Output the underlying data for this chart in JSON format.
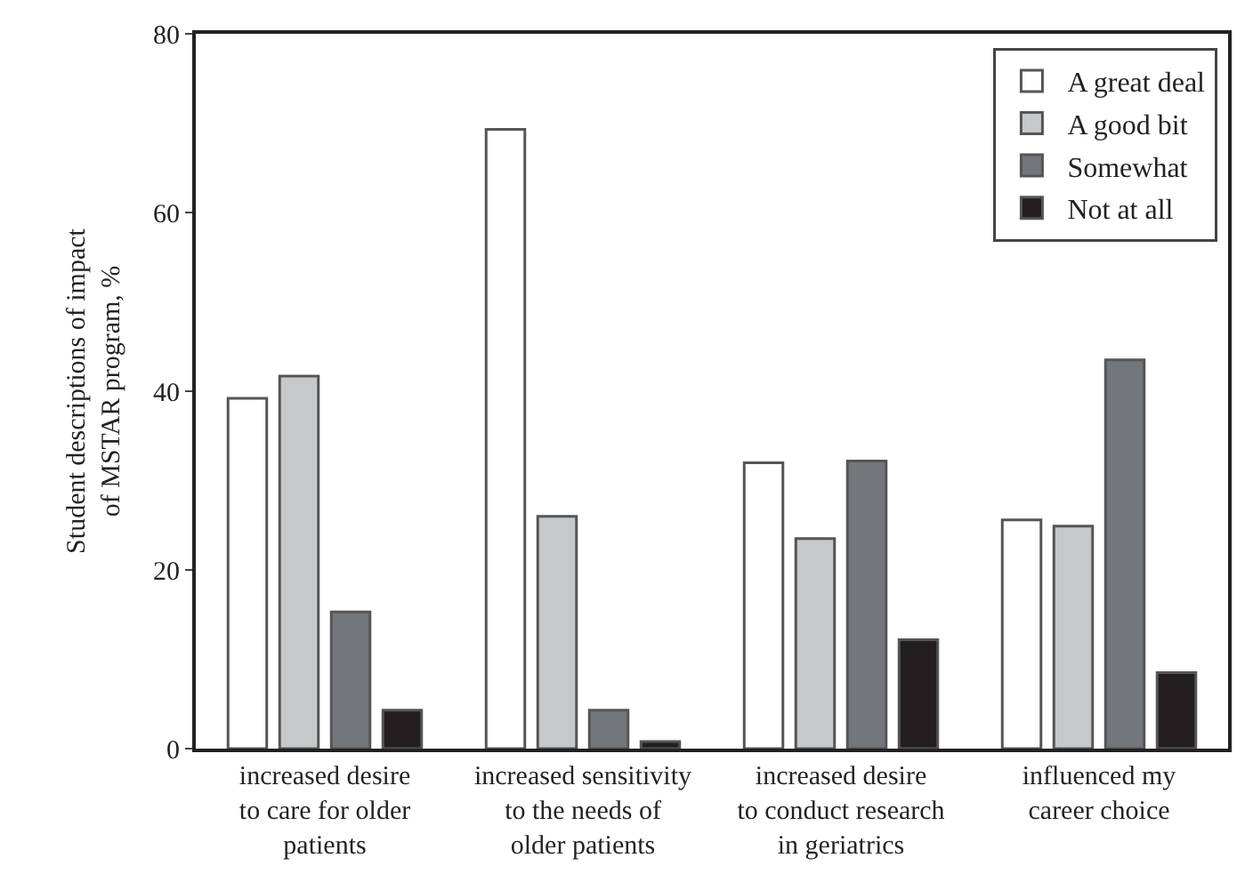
{
  "chart_data": {
    "type": "bar",
    "ylabel": "Student descriptions of impact\nof MSTAR program, %",
    "categories": [
      "increased desire\nto care for older\npatients",
      "increased sensitivity\nto the needs of\nolder patients",
      "increased desire\nto conduct research\nin geriatrics",
      "influenced my\ncareer choice"
    ],
    "series": [
      {
        "name": "A great deal",
        "color": "#ffffff",
        "values": [
          39.2,
          69.3,
          32,
          25.6
        ]
      },
      {
        "name": "A good bit",
        "color": "#c6c8ca",
        "values": [
          41.7,
          26,
          23.5,
          24.9
        ]
      },
      {
        "name": "Somewhat",
        "color": "#73767a",
        "values": [
          15.3,
          4.3,
          32.2,
          43.5
        ]
      },
      {
        "name": "Not at all",
        "color": "#231f20",
        "values": [
          4.3,
          0.8,
          12.2,
          8.5
        ]
      }
    ],
    "ylim": [
      0,
      80
    ],
    "yticks": [
      0,
      20,
      40,
      60,
      80
    ],
    "legend": "top right"
  }
}
